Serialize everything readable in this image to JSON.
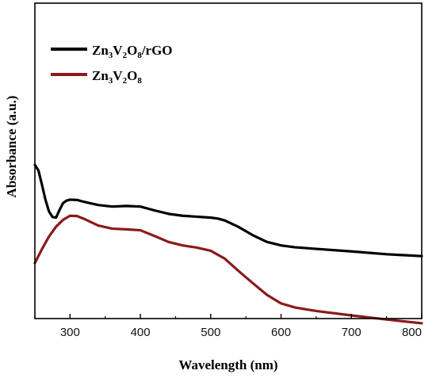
{
  "chart_data": {
    "type": "line",
    "title": "",
    "xlabel": "Wavelength (nm)",
    "ylabel": "Absorbance (a.u.)",
    "xlim": [
      250,
      800
    ],
    "ylim": [
      0,
      1
    ],
    "x_ticks": [
      "300",
      "400",
      "500",
      "600",
      "700",
      "800"
    ],
    "x_tick_values": [
      300,
      400,
      500,
      600,
      700,
      800
    ],
    "y_ticks_shown": false,
    "legend_position": "top-left",
    "series": [
      {
        "name": "Zn3V2O8/rGO",
        "legend": {
          "base": "Zn",
          "sub1": "3",
          "mid": "V",
          "sub2": "2",
          "end": "O",
          "sub3": "8",
          "suffix": "/rGO"
        },
        "color": "#000000",
        "x": [
          250,
          255,
          260,
          265,
          270,
          275,
          280,
          285,
          290,
          295,
          300,
          310,
          320,
          340,
          360,
          380,
          400,
          420,
          440,
          460,
          480,
          500,
          510,
          520,
          540,
          560,
          580,
          600,
          620,
          650,
          700,
          750,
          800
        ],
        "y": [
          0.487,
          0.47,
          0.425,
          0.377,
          0.34,
          0.322,
          0.32,
          0.344,
          0.366,
          0.374,
          0.377,
          0.376,
          0.37,
          0.36,
          0.355,
          0.357,
          0.355,
          0.343,
          0.332,
          0.326,
          0.323,
          0.32,
          0.317,
          0.311,
          0.29,
          0.264,
          0.243,
          0.232,
          0.226,
          0.221,
          0.213,
          0.204,
          0.198
        ]
      },
      {
        "name": "Zn3V2O8",
        "legend": {
          "base": "Zn",
          "sub1": "3",
          "mid": "V",
          "sub2": "2",
          "end": "O",
          "sub3": "8",
          "suffix": ""
        },
        "color": "#8b1a1a",
        "x": [
          250,
          260,
          270,
          280,
          290,
          300,
          310,
          320,
          340,
          360,
          380,
          400,
          420,
          440,
          460,
          480,
          500,
          520,
          540,
          560,
          580,
          600,
          620,
          650,
          700,
          750,
          800
        ],
        "y": [
          0.176,
          0.22,
          0.26,
          0.291,
          0.313,
          0.326,
          0.325,
          0.316,
          0.295,
          0.285,
          0.283,
          0.28,
          0.262,
          0.243,
          0.232,
          0.225,
          0.215,
          0.19,
          0.15,
          0.112,
          0.075,
          0.048,
          0.035,
          0.024,
          0.01,
          -0.003,
          -0.015
        ]
      }
    ]
  }
}
